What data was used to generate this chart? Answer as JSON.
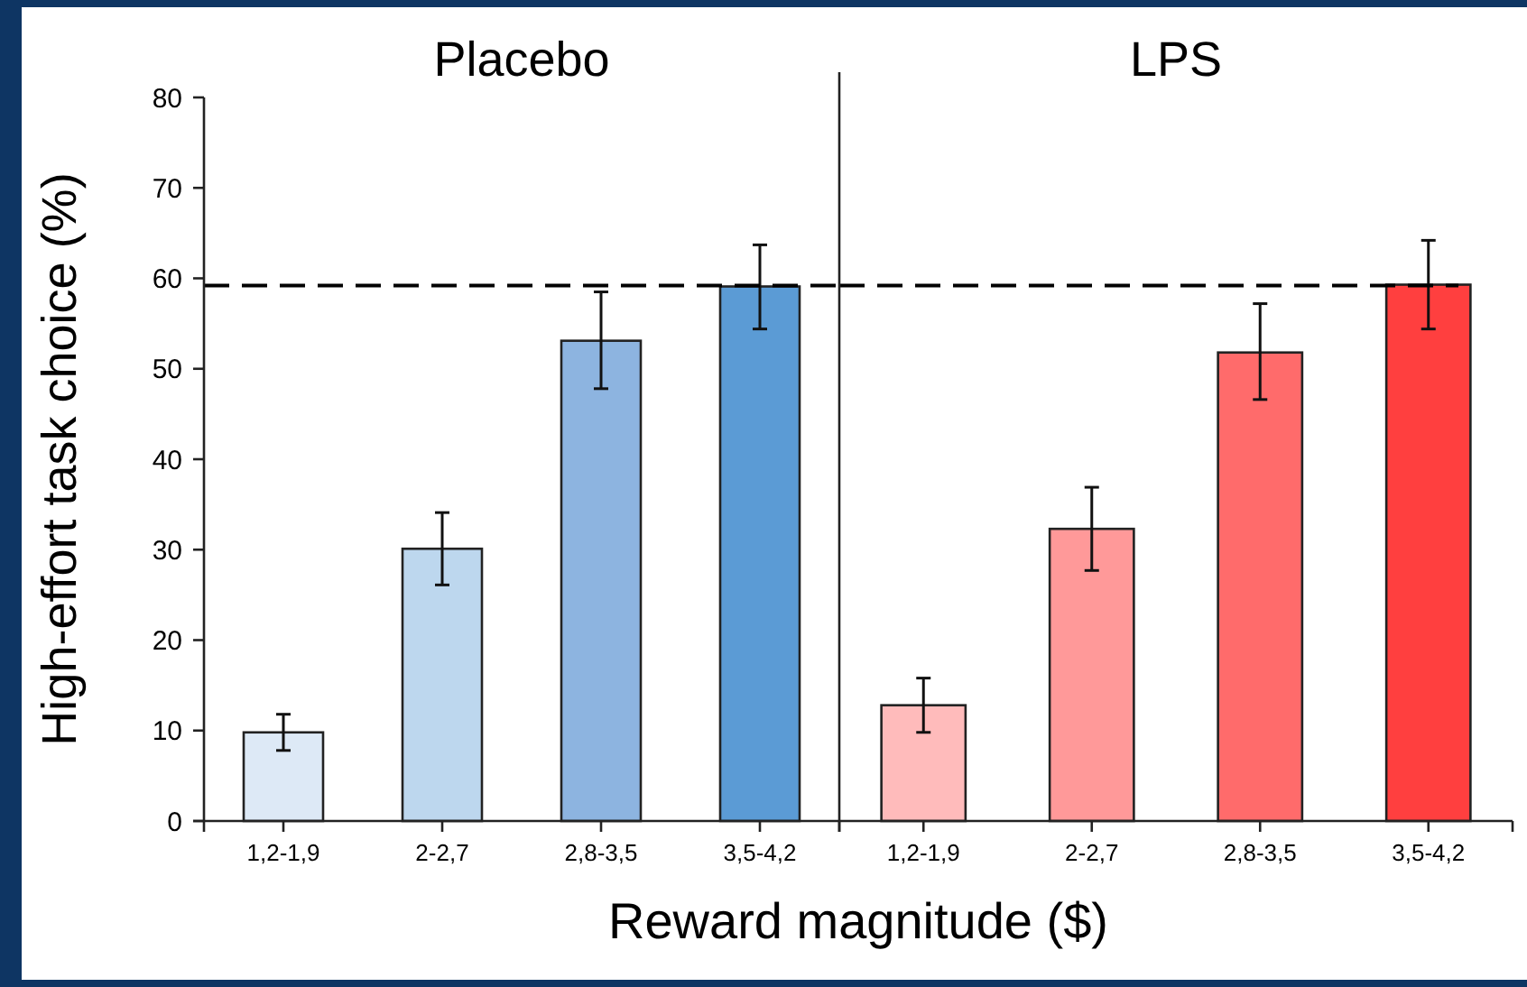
{
  "chart_data": [
    {
      "type": "bar",
      "title": "Placebo",
      "ylabel": "High-effort task choice (%)",
      "xlabel": "Reward magnitude ($)",
      "categories": [
        "1,2-1,9",
        "2-2,7",
        "2,8-3,5",
        "3,5-4,2"
      ],
      "values": [
        9.8,
        30.1,
        53.1,
        59.1
      ],
      "colors": [
        "#dde9f6",
        "#bdd7ee",
        "#8db4e0",
        "#5b9bd5"
      ],
      "errors": [
        [
          7.8,
          11.8
        ],
        [
          26.1,
          34.1
        ],
        [
          47.8,
          58.5
        ],
        [
          54.4,
          63.7
        ]
      ],
      "ylim": [
        0,
        80
      ],
      "yticks": [
        0,
        10,
        20,
        30,
        40,
        50,
        60,
        70,
        80
      ],
      "ref_lines": [
        {
          "axis": "y",
          "value": 59.2,
          "line_style": "dashed",
          "color": "#000000"
        }
      ]
    },
    {
      "type": "bar",
      "title": "LPS",
      "categories": [
        "1,2-1,9",
        "2-2,7",
        "2,8-3,5",
        "3,5-4,2"
      ],
      "values": [
        12.8,
        32.3,
        51.8,
        59.3
      ],
      "colors": [
        "#ffbbbb",
        "#ff9999",
        "#ff6b6b",
        "#ff3f3f"
      ],
      "errors": [
        [
          9.8,
          15.8
        ],
        [
          27.7,
          36.9
        ],
        [
          46.6,
          57.2
        ],
        [
          54.4,
          64.2
        ]
      ],
      "ylim": [
        0,
        80
      ],
      "tick_labels": "x",
      "ref_lines": [
        {
          "axis": "y",
          "value": 59.2,
          "line_style": "dashed",
          "color": "#000000"
        }
      ]
    }
  ]
}
